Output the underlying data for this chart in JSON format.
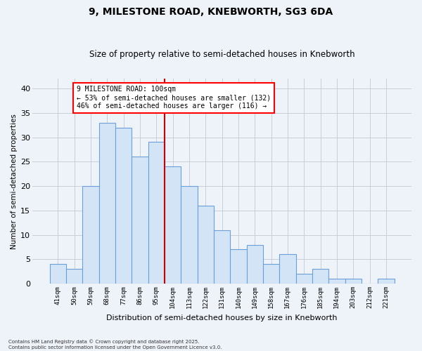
{
  "title": "9, MILESTONE ROAD, KNEBWORTH, SG3 6DA",
  "subtitle": "Size of property relative to semi-detached houses in Knebworth",
  "xlabel": "Distribution of semi-detached houses by size in Knebworth",
  "ylabel": "Number of semi-detached properties",
  "categories": [
    "41sqm",
    "50sqm",
    "59sqm",
    "68sqm",
    "77sqm",
    "86sqm",
    "95sqm",
    "104sqm",
    "113sqm",
    "122sqm",
    "131sqm",
    "140sqm",
    "149sqm",
    "158sqm",
    "167sqm",
    "176sqm",
    "185sqm",
    "194sqm",
    "203sqm",
    "212sqm",
    "221sqm"
  ],
  "values": [
    4,
    3,
    20,
    33,
    32,
    26,
    29,
    24,
    20,
    16,
    11,
    7,
    8,
    4,
    6,
    2,
    3,
    1,
    1,
    0,
    1
  ],
  "bar_color": "#d4e4f7",
  "bar_edge_color": "#6a9fd8",
  "grid_color": "#c8cdd8",
  "vline_color": "#cc0000",
  "annotation_title": "9 MILESTONE ROAD: 100sqm",
  "annotation_line1": "← 53% of semi-detached houses are smaller (132)",
  "annotation_line2": "46% of semi-detached houses are larger (116) →",
  "footer1": "Contains HM Land Registry data © Crown copyright and database right 2025.",
  "footer2": "Contains public sector information licensed under the Open Government Licence v3.0.",
  "ylim": [
    0,
    42
  ],
  "yticks": [
    0,
    5,
    10,
    15,
    20,
    25,
    30,
    35,
    40
  ],
  "bg_color": "#eef2f9",
  "plot_bg_color": "#eef2f9"
}
